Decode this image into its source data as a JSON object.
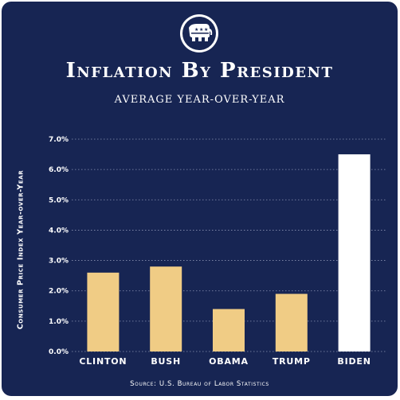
{
  "title": "Inflation By President",
  "subtitle": "AVERAGE YEAR-OVER-YEAR",
  "source": "Source: U.S. Bureau of Labor Statistics",
  "logo_icon": "republican-elephant-icon",
  "colors": {
    "background": "#172553",
    "bar": "#f0cc85",
    "highlight_bar": "#ffffff",
    "text": "#ffffff",
    "grid": "#8a93b3"
  },
  "chart_data": {
    "type": "bar",
    "title": "Inflation By President",
    "subtitle": "AVERAGE YEAR-OVER-YEAR",
    "ylabel": "Consumer Price Index Year-over-Year",
    "xlabel": "",
    "categories": [
      "CLINTON",
      "BUSH",
      "OBAMA",
      "TRUMP",
      "BIDEN"
    ],
    "values": [
      2.6,
      2.8,
      1.4,
      1.9,
      6.5
    ],
    "highlight_index": 4,
    "ylim": [
      0,
      7
    ],
    "yticks": [
      "0.0%",
      "1.0%",
      "2.0%",
      "3.0%",
      "4.0%",
      "5.0%",
      "6.0%",
      "7.0%"
    ],
    "grid": "horizontal dotted",
    "legend": "none"
  }
}
